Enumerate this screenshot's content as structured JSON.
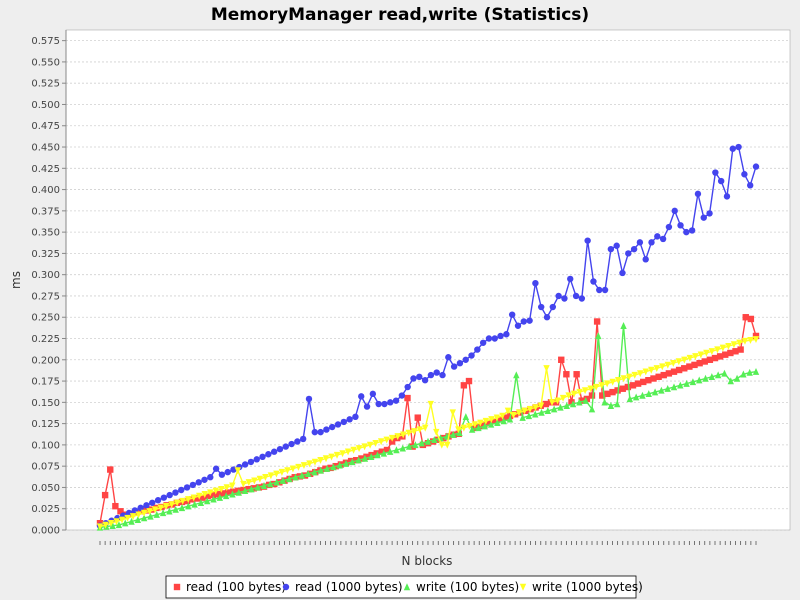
{
  "chart_data": {
    "type": "line",
    "title": "MemoryManager read,write (Statistics)",
    "xlabel": "N blocks",
    "ylabel": "ms",
    "ylim": [
      0,
      0.5875
    ],
    "y_ticks": [
      "0.000",
      "0.025",
      "0.050",
      "0.075",
      "0.100",
      "0.125",
      "0.150",
      "0.175",
      "0.200",
      "0.225",
      "0.250",
      "0.275",
      "0.300",
      "0.325",
      "0.350",
      "0.375",
      "0.400",
      "0.425",
      "0.450",
      "0.475",
      "0.500",
      "0.525",
      "0.550",
      "0.575"
    ],
    "x_ticks_labeled": false,
    "grid": true,
    "legend_position": "bottom-center",
    "colors": {
      "background": "#eeeeee",
      "plot_background": "#ffffff",
      "grid": "#d0d0d0",
      "read_100": "#ff4444",
      "read_1000": "#4444ee",
      "write_100": "#55ee55",
      "write_1000": "#ffff22"
    },
    "series": [
      {
        "name": "read (100 bytes)",
        "color": "#ff4444",
        "marker": "square",
        "values": [
          0.008,
          0.041,
          0.071,
          0.028,
          0.022,
          0.018,
          0.019,
          0.021,
          0.022,
          0.023,
          0.024,
          0.026,
          0.027,
          0.029,
          0.03,
          0.032,
          0.033,
          0.034,
          0.036,
          0.037,
          0.038,
          0.04,
          0.041,
          0.042,
          0.043,
          0.044,
          0.045,
          0.046,
          0.047,
          0.048,
          0.049,
          0.05,
          0.051,
          0.053,
          0.054,
          0.056,
          0.058,
          0.06,
          0.062,
          0.063,
          0.064,
          0.066,
          0.068,
          0.07,
          0.072,
          0.073,
          0.075,
          0.077,
          0.079,
          0.081,
          0.082,
          0.084,
          0.086,
          0.088,
          0.09,
          0.092,
          0.094,
          0.104,
          0.108,
          0.11,
          0.155,
          0.098,
          0.132,
          0.1,
          0.102,
          0.104,
          0.106,
          0.108,
          0.11,
          0.112,
          0.113,
          0.17,
          0.175,
          0.12,
          0.122,
          0.124,
          0.126,
          0.128,
          0.13,
          0.132,
          0.134,
          0.136,
          0.138,
          0.14,
          0.142,
          0.144,
          0.146,
          0.148,
          0.15,
          0.15,
          0.2,
          0.183,
          0.15,
          0.183,
          0.152,
          0.154,
          0.158,
          0.245,
          0.158,
          0.16,
          0.162,
          0.164,
          0.166,
          0.168,
          0.17,
          0.172,
          0.174,
          0.176,
          0.178,
          0.18,
          0.182,
          0.184,
          0.186,
          0.188,
          0.19,
          0.192,
          0.194,
          0.196,
          0.198,
          0.2,
          0.202,
          0.204,
          0.206,
          0.208,
          0.21,
          0.212,
          0.25,
          0.248,
          0.228
        ]
      },
      {
        "name": "read (1000 bytes)",
        "color": "#4444ee",
        "marker": "circle",
        "values": [
          0.005,
          0.008,
          0.011,
          0.014,
          0.017,
          0.02,
          0.023,
          0.026,
          0.029,
          0.032,
          0.035,
          0.038,
          0.041,
          0.044,
          0.047,
          0.05,
          0.053,
          0.056,
          0.059,
          0.062,
          0.072,
          0.065,
          0.068,
          0.071,
          0.074,
          0.077,
          0.08,
          0.083,
          0.086,
          0.089,
          0.092,
          0.095,
          0.098,
          0.101,
          0.104,
          0.107,
          0.154,
          0.115,
          0.115,
          0.118,
          0.121,
          0.124,
          0.127,
          0.13,
          0.133,
          0.157,
          0.145,
          0.16,
          0.148,
          0.148,
          0.15,
          0.152,
          0.158,
          0.168,
          0.178,
          0.18,
          0.176,
          0.182,
          0.185,
          0.182,
          0.203,
          0.192,
          0.196,
          0.2,
          0.205,
          0.212,
          0.22,
          0.225,
          0.225,
          0.228,
          0.23,
          0.253,
          0.24,
          0.245,
          0.246,
          0.29,
          0.262,
          0.25,
          0.262,
          0.275,
          0.272,
          0.295,
          0.275,
          0.272,
          0.34,
          0.292,
          0.282,
          0.282,
          0.33,
          0.334,
          0.302,
          0.325,
          0.33,
          0.338,
          0.318,
          0.338,
          0.345,
          0.342,
          0.356,
          0.375,
          0.358,
          0.35,
          0.352,
          0.395,
          0.367,
          0.372,
          0.42,
          0.41,
          0.392,
          0.448,
          0.45,
          0.418,
          0.405,
          0.427
        ]
      },
      {
        "name": "write (100 bytes)",
        "color": "#55ee55",
        "marker": "triangle",
        "values": [
          0.003,
          0.004,
          0.005,
          0.006,
          0.008,
          0.01,
          0.012,
          0.014,
          0.016,
          0.018,
          0.02,
          0.022,
          0.024,
          0.026,
          0.028,
          0.03,
          0.032,
          0.034,
          0.036,
          0.038,
          0.04,
          0.042,
          0.044,
          0.046,
          0.048,
          0.05,
          0.052,
          0.054,
          0.056,
          0.058,
          0.06,
          0.062,
          0.064,
          0.066,
          0.068,
          0.07,
          0.072,
          0.074,
          0.076,
          0.078,
          0.08,
          0.082,
          0.084,
          0.086,
          0.088,
          0.09,
          0.092,
          0.094,
          0.096,
          0.098,
          0.1,
          0.102,
          0.104,
          0.106,
          0.108,
          0.11,
          0.112,
          0.114,
          0.133,
          0.118,
          0.12,
          0.122,
          0.124,
          0.126,
          0.128,
          0.13,
          0.182,
          0.132,
          0.134,
          0.136,
          0.138,
          0.14,
          0.142,
          0.144,
          0.146,
          0.148,
          0.15,
          0.152,
          0.142,
          0.228,
          0.15,
          0.146,
          0.148,
          0.24,
          0.154,
          0.156,
          0.158,
          0.16,
          0.162,
          0.164,
          0.166,
          0.168,
          0.17,
          0.172,
          0.174,
          0.176,
          0.178,
          0.18,
          0.182,
          0.184,
          0.175,
          0.178,
          0.183,
          0.185,
          0.186
        ]
      },
      {
        "name": "write (1000 bytes)",
        "color": "#ffff22",
        "marker": "triangle-down",
        "values": [
          0.004,
          0.006,
          0.008,
          0.01,
          0.012,
          0.014,
          0.016,
          0.018,
          0.02,
          0.022,
          0.024,
          0.026,
          0.028,
          0.03,
          0.032,
          0.034,
          0.036,
          0.038,
          0.04,
          0.042,
          0.044,
          0.046,
          0.048,
          0.05,
          0.052,
          0.07,
          0.054,
          0.056,
          0.058,
          0.06,
          0.062,
          0.064,
          0.066,
          0.068,
          0.07,
          0.072,
          0.074,
          0.076,
          0.078,
          0.08,
          0.082,
          0.084,
          0.086,
          0.088,
          0.09,
          0.092,
          0.094,
          0.096,
          0.098,
          0.1,
          0.102,
          0.104,
          0.106,
          0.108,
          0.11,
          0.112,
          0.114,
          0.116,
          0.118,
          0.12,
          0.148,
          0.115,
          0.1,
          0.1,
          0.138,
          0.118,
          0.12,
          0.122,
          0.124,
          0.126,
          0.128,
          0.13,
          0.132,
          0.134,
          0.14,
          0.135,
          0.138,
          0.14,
          0.142,
          0.144,
          0.146,
          0.19,
          0.15,
          0.152,
          0.155,
          0.158,
          0.16,
          0.162,
          0.164,
          0.166,
          0.168,
          0.17,
          0.172,
          0.174,
          0.176,
          0.178,
          0.18,
          0.182,
          0.184,
          0.186,
          0.188,
          0.19,
          0.192,
          0.194,
          0.196,
          0.198,
          0.2,
          0.202,
          0.204,
          0.206,
          0.208,
          0.21,
          0.212,
          0.214,
          0.216,
          0.218,
          0.22,
          0.222,
          0.223,
          0.224
        ]
      }
    ]
  }
}
